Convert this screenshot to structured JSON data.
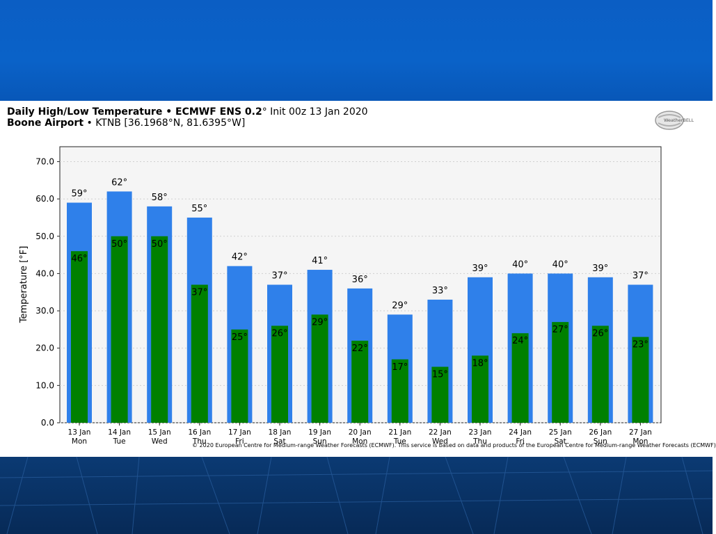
{
  "header": {
    "title_bold": "Daily High/Low Temperature • ECMWF ENS 0.2",
    "title_rest": "° Init 00z 13 Jan 2020",
    "location_bold": "Boone Airport",
    "location_rest": " • KTNB [36.1968°N, 81.6395°W]"
  },
  "logo": {
    "text": "WeatherBELL"
  },
  "footer": {
    "copyright": "© 2020 European Centre for Medium-range Weather Forecasts (ECMWF). This service is based on data and products of the European Centre for Medium-range Weather Forecasts (ECMWF)"
  },
  "colors": {
    "high": "#2f80ea",
    "low": "#008000",
    "banner": "#0a62c8",
    "plot_bg": "#f5f5f5"
  },
  "chart_data": {
    "type": "bar",
    "title": "Daily High/Low Temperature • ECMWF ENS 0.2° Init 00z 13 Jan 2020",
    "ylabel": "Temperature [°F]",
    "xlabel": "",
    "ylim": [
      0,
      74
    ],
    "yticks": [
      "0.0",
      "10.0",
      "20.0",
      "30.0",
      "40.0",
      "50.0",
      "60.0",
      "70.0"
    ],
    "grid": true,
    "categories": [
      {
        "date": "13 Jan",
        "day": "Mon"
      },
      {
        "date": "14 Jan",
        "day": "Tue"
      },
      {
        "date": "15 Jan",
        "day": "Wed"
      },
      {
        "date": "16 Jan",
        "day": "Thu"
      },
      {
        "date": "17 Jan",
        "day": "Fri"
      },
      {
        "date": "18 Jan",
        "day": "Sat"
      },
      {
        "date": "19 Jan",
        "day": "Sun"
      },
      {
        "date": "20 Jan",
        "day": "Mon"
      },
      {
        "date": "21 Jan",
        "day": "Tue"
      },
      {
        "date": "22 Jan",
        "day": "Wed"
      },
      {
        "date": "23 Jan",
        "day": "Thu"
      },
      {
        "date": "24 Jan",
        "day": "Fri"
      },
      {
        "date": "25 Jan",
        "day": "Sat"
      },
      {
        "date": "26 Jan",
        "day": "Sun"
      },
      {
        "date": "27 Jan",
        "day": "Mon"
      }
    ],
    "series": [
      {
        "name": "High",
        "values": [
          59,
          62,
          58,
          55,
          42,
          37,
          41,
          36,
          29,
          33,
          39,
          40,
          40,
          39,
          37
        ]
      },
      {
        "name": "Low",
        "values": [
          46,
          50,
          50,
          37,
          25,
          26,
          29,
          22,
          17,
          15,
          18,
          24,
          27,
          26,
          23
        ]
      }
    ],
    "high_labels": [
      "59°",
      "62°",
      "58°",
      "55°",
      "42°",
      "37°",
      "41°",
      "36°",
      "29°",
      "33°",
      "39°",
      "40°",
      "40°",
      "39°",
      "37°"
    ],
    "low_labels": [
      "46°",
      "50°",
      "50°",
      "37°",
      "25°",
      "26°",
      "29°",
      "22°",
      "17°",
      "15°",
      "18°",
      "24°",
      "27°",
      "26°",
      "23°"
    ]
  }
}
